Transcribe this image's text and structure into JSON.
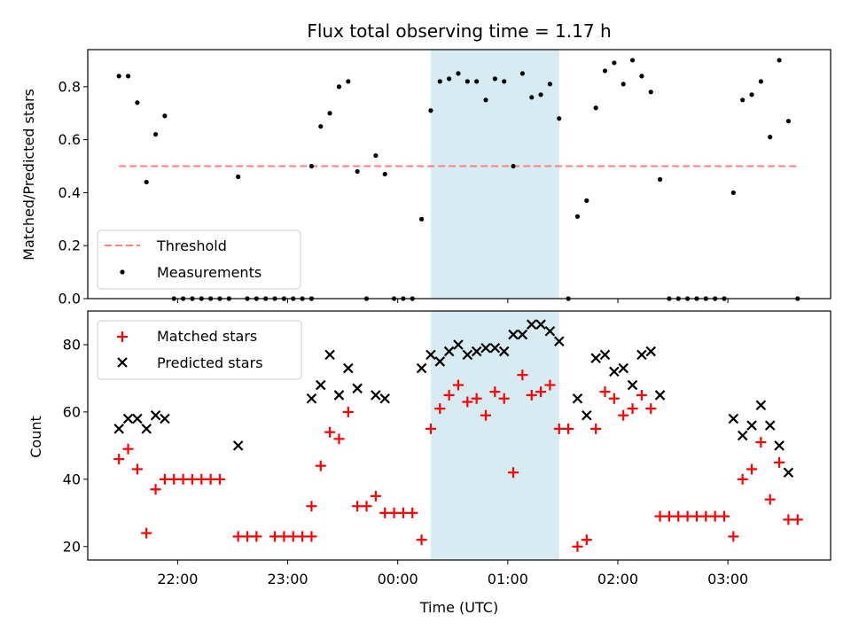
{
  "chart_data": [
    {
      "type": "scatter",
      "title": "Flux total observing time = 1.17 h",
      "xlabel": "",
      "ylabel": "Matched/Predicted stars",
      "xlim": [
        "21:11",
        "03:56"
      ],
      "ylim": [
        0,
        0.94
      ],
      "yticks": [
        0.0,
        0.2,
        0.4,
        0.6,
        0.8
      ],
      "ytick_labels": [
        "0.0",
        "0.2",
        "0.4",
        "0.6",
        "0.8"
      ],
      "legend_position": "lower-left",
      "grid": false,
      "shaded_region": {
        "x_start": "00:18",
        "x_end": "01:28",
        "color": "#add8e6"
      },
      "threshold": {
        "name": "Threshold",
        "y": 0.5,
        "x_start": "21:28",
        "x_end": "03:38",
        "color": "#ff7f7f",
        "style": "dashed"
      },
      "series": [
        {
          "name": "Measurements",
          "color": "#000000",
          "marker": "dot",
          "points": [
            [
              "21:28",
              0.84
            ],
            [
              "21:33",
              0.84
            ],
            [
              "21:38",
              0.74
            ],
            [
              "21:43",
              0.44
            ],
            [
              "21:48",
              0.62
            ],
            [
              "21:53",
              0.69
            ],
            [
              "21:58",
              0
            ],
            [
              "22:03",
              0
            ],
            [
              "22:08",
              0
            ],
            [
              "22:13",
              0
            ],
            [
              "22:18",
              0
            ],
            [
              "22:23",
              0
            ],
            [
              "22:28",
              0
            ],
            [
              "22:33",
              0.46
            ],
            [
              "22:38",
              0
            ],
            [
              "22:43",
              0
            ],
            [
              "22:48",
              0
            ],
            [
              "22:53",
              0
            ],
            [
              "22:58",
              0
            ],
            [
              "23:03",
              0
            ],
            [
              "23:08",
              0
            ],
            [
              "23:13",
              0
            ],
            [
              "23:13",
              0.5
            ],
            [
              "23:18",
              0.65
            ],
            [
              "23:23",
              0.7
            ],
            [
              "23:28",
              0.8
            ],
            [
              "23:33",
              0.82
            ],
            [
              "23:38",
              0.48
            ],
            [
              "23:43",
              0
            ],
            [
              "23:48",
              0.54
            ],
            [
              "23:53",
              0.47
            ],
            [
              "23:58",
              0
            ],
            [
              "00:03",
              0
            ],
            [
              "00:08",
              0
            ],
            [
              "00:13",
              0.3
            ],
            [
              "00:18",
              0.71
            ],
            [
              "00:23",
              0.82
            ],
            [
              "00:28",
              0.83
            ],
            [
              "00:33",
              0.85
            ],
            [
              "00:38",
              0.82
            ],
            [
              "00:43",
              0.82
            ],
            [
              "00:48",
              0.75
            ],
            [
              "00:53",
              0.83
            ],
            [
              "00:58",
              0.82
            ],
            [
              "01:03",
              0.5
            ],
            [
              "01:08",
              0.85
            ],
            [
              "01:13",
              0.76
            ],
            [
              "01:18",
              0.77
            ],
            [
              "01:23",
              0.81
            ],
            [
              "01:28",
              0.68
            ],
            [
              "01:33",
              0
            ],
            [
              "01:38",
              0.31
            ],
            [
              "01:43",
              0.37
            ],
            [
              "01:48",
              0.72
            ],
            [
              "01:53",
              0.86
            ],
            [
              "01:58",
              0.89
            ],
            [
              "02:03",
              0.81
            ],
            [
              "02:08",
              0.9
            ],
            [
              "02:13",
              0.84
            ],
            [
              "02:18",
              0.78
            ],
            [
              "02:23",
              0.45
            ],
            [
              "02:28",
              0
            ],
            [
              "02:33",
              0
            ],
            [
              "02:38",
              0
            ],
            [
              "02:43",
              0
            ],
            [
              "02:48",
              0
            ],
            [
              "02:53",
              0
            ],
            [
              "02:58",
              0
            ],
            [
              "03:03",
              0.4
            ],
            [
              "03:08",
              0.75
            ],
            [
              "03:13",
              0.77
            ],
            [
              "03:18",
              0.82
            ],
            [
              "03:23",
              0.61
            ],
            [
              "03:28",
              0.9
            ],
            [
              "03:33",
              0.67
            ],
            [
              "03:38",
              0
            ]
          ]
        }
      ]
    },
    {
      "type": "scatter",
      "title": "",
      "xlabel": "Time (UTC)",
      "ylabel": "Count",
      "xlim": [
        "21:11",
        "03:56"
      ],
      "ylim": [
        16,
        90
      ],
      "yticks": [
        20,
        40,
        60,
        80
      ],
      "ytick_labels": [
        "20",
        "40",
        "60",
        "80"
      ],
      "xticks": [
        "22:00",
        "23:00",
        "00:00",
        "01:00",
        "02:00",
        "03:00"
      ],
      "xtick_labels": [
        "22:00",
        "23:00",
        "00:00",
        "01:00",
        "02:00",
        "03:00"
      ],
      "legend_position": "top-left",
      "grid": false,
      "shaded_region": {
        "x_start": "00:18",
        "x_end": "01:28",
        "color": "#add8e6"
      },
      "series": [
        {
          "name": "Matched stars",
          "color": "#ff0000",
          "marker": "plus",
          "points": [
            [
              "21:28",
              46
            ],
            [
              "21:33",
              49
            ],
            [
              "21:38",
              43
            ],
            [
              "21:43",
              24
            ],
            [
              "21:48",
              37
            ],
            [
              "21:53",
              40
            ],
            [
              "21:58",
              40
            ],
            [
              "22:03",
              40
            ],
            [
              "22:08",
              40
            ],
            [
              "22:13",
              40
            ],
            [
              "22:18",
              40
            ],
            [
              "22:23",
              40
            ],
            [
              "22:33",
              23
            ],
            [
              "22:38",
              23
            ],
            [
              "22:43",
              23
            ],
            [
              "22:53",
              23
            ],
            [
              "22:58",
              23
            ],
            [
              "23:03",
              23
            ],
            [
              "23:08",
              23
            ],
            [
              "23:13",
              23
            ],
            [
              "23:13",
              32
            ],
            [
              "23:18",
              44
            ],
            [
              "23:23",
              54
            ],
            [
              "23:28",
              52
            ],
            [
              "23:33",
              60
            ],
            [
              "23:38",
              32
            ],
            [
              "23:43",
              32
            ],
            [
              "23:48",
              35
            ],
            [
              "23:53",
              30
            ],
            [
              "23:58",
              30
            ],
            [
              "00:03",
              30
            ],
            [
              "00:08",
              30
            ],
            [
              "00:13",
              22
            ],
            [
              "00:18",
              55
            ],
            [
              "00:23",
              61
            ],
            [
              "00:28",
              65
            ],
            [
              "00:33",
              68
            ],
            [
              "00:38",
              63
            ],
            [
              "00:43",
              64
            ],
            [
              "00:48",
              59
            ],
            [
              "00:53",
              66
            ],
            [
              "00:58",
              64
            ],
            [
              "01:03",
              42
            ],
            [
              "01:08",
              71
            ],
            [
              "01:13",
              65
            ],
            [
              "01:18",
              66
            ],
            [
              "01:23",
              68
            ],
            [
              "01:28",
              55
            ],
            [
              "01:33",
              55
            ],
            [
              "01:38",
              20
            ],
            [
              "01:43",
              22
            ],
            [
              "01:48",
              55
            ],
            [
              "01:53",
              66
            ],
            [
              "01:58",
              64
            ],
            [
              "02:03",
              59
            ],
            [
              "02:08",
              61
            ],
            [
              "02:13",
              65
            ],
            [
              "02:18",
              61
            ],
            [
              "02:23",
              29
            ],
            [
              "02:28",
              29
            ],
            [
              "02:33",
              29
            ],
            [
              "02:38",
              29
            ],
            [
              "02:43",
              29
            ],
            [
              "02:48",
              29
            ],
            [
              "02:53",
              29
            ],
            [
              "02:58",
              29
            ],
            [
              "03:03",
              23
            ],
            [
              "03:08",
              40
            ],
            [
              "03:13",
              43
            ],
            [
              "03:18",
              51
            ],
            [
              "03:23",
              34
            ],
            [
              "03:28",
              45
            ],
            [
              "03:33",
              28
            ],
            [
              "03:38",
              28
            ]
          ]
        },
        {
          "name": "Predicted stars",
          "color": "#000000",
          "marker": "x",
          "points": [
            [
              "21:28",
              55
            ],
            [
              "21:33",
              58
            ],
            [
              "21:38",
              58
            ],
            [
              "21:43",
              55
            ],
            [
              "21:48",
              59
            ],
            [
              "21:53",
              58
            ],
            [
              "22:33",
              50
            ],
            [
              "23:13",
              64
            ],
            [
              "23:18",
              68
            ],
            [
              "23:23",
              77
            ],
            [
              "23:28",
              65
            ],
            [
              "23:33",
              73
            ],
            [
              "23:38",
              67
            ],
            [
              "23:48",
              65
            ],
            [
              "23:53",
              64
            ],
            [
              "00:13",
              73
            ],
            [
              "00:18",
              77
            ],
            [
              "00:23",
              75
            ],
            [
              "00:28",
              78
            ],
            [
              "00:33",
              80
            ],
            [
              "00:38",
              77
            ],
            [
              "00:43",
              78
            ],
            [
              "00:48",
              79
            ],
            [
              "00:53",
              79
            ],
            [
              "00:58",
              78
            ],
            [
              "01:03",
              83
            ],
            [
              "01:08",
              83
            ],
            [
              "01:13",
              86
            ],
            [
              "01:18",
              86
            ],
            [
              "01:23",
              84
            ],
            [
              "01:28",
              81
            ],
            [
              "01:38",
              64
            ],
            [
              "01:43",
              59
            ],
            [
              "01:48",
              76
            ],
            [
              "01:53",
              77
            ],
            [
              "01:58",
              72
            ],
            [
              "02:03",
              73
            ],
            [
              "02:08",
              68
            ],
            [
              "02:13",
              77
            ],
            [
              "02:18",
              78
            ],
            [
              "02:23",
              65
            ],
            [
              "03:03",
              58
            ],
            [
              "03:08",
              53
            ],
            [
              "03:13",
              56
            ],
            [
              "03:18",
              62
            ],
            [
              "03:23",
              56
            ],
            [
              "03:28",
              50
            ],
            [
              "03:33",
              42
            ]
          ]
        }
      ]
    }
  ]
}
